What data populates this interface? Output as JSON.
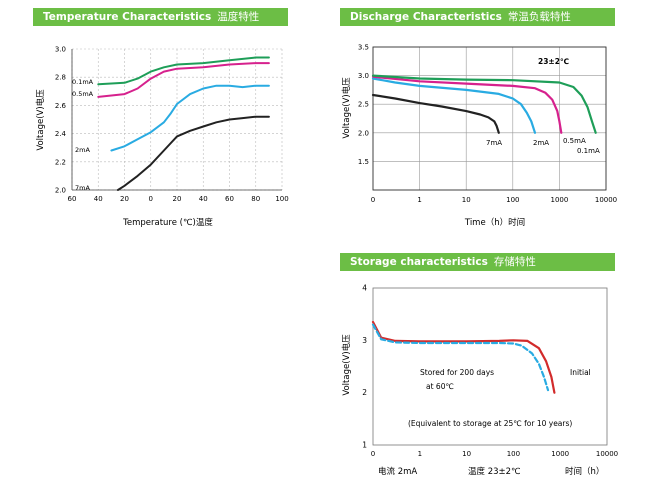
{
  "temperature": {
    "header": {
      "title_en": "Temperature Characteristics",
      "title_cn": "温度特性"
    },
    "chart_data": {
      "type": "line",
      "xlabel": "Temperature (℃)温度",
      "ylabel": "Voltage(V)电压",
      "x_ticks": [
        "60",
        "40",
        "20",
        "0",
        "20",
        "40",
        "60",
        "80",
        "100"
      ],
      "x_tick_values": [
        -60,
        -40,
        -20,
        0,
        20,
        40,
        60,
        80,
        100
      ],
      "y_ticks": [
        "3.0",
        "2.8",
        "2.6",
        "2.4",
        "2.2",
        "2.0"
      ],
      "xlim": [
        -60,
        100
      ],
      "ylim": [
        2.0,
        3.0
      ],
      "grid": true,
      "series": [
        {
          "name": "0.1mA",
          "color": "#1e9e58",
          "x": [
            -40,
            -20,
            -10,
            0,
            10,
            20,
            40,
            60,
            80,
            90
          ],
          "y": [
            2.75,
            2.76,
            2.79,
            2.84,
            2.87,
            2.89,
            2.9,
            2.92,
            2.94,
            2.94
          ]
        },
        {
          "name": "0.5mA",
          "color": "#d6218d",
          "x": [
            -40,
            -20,
            -10,
            0,
            10,
            20,
            40,
            60,
            80,
            90
          ],
          "y": [
            2.66,
            2.68,
            2.72,
            2.79,
            2.84,
            2.86,
            2.87,
            2.89,
            2.9,
            2.9
          ]
        },
        {
          "name": "2mA",
          "color": "#29abe2",
          "x": [
            -30,
            -20,
            -10,
            0,
            10,
            15,
            20,
            30,
            40,
            50,
            60,
            70,
            80,
            90
          ],
          "y": [
            2.28,
            2.31,
            2.36,
            2.41,
            2.48,
            2.54,
            2.61,
            2.68,
            2.72,
            2.74,
            2.74,
            2.73,
            2.74,
            2.74
          ]
        },
        {
          "name": "7mA",
          "color": "#222222",
          "x": [
            -25,
            -20,
            -10,
            0,
            10,
            15,
            20,
            30,
            40,
            50,
            60,
            70,
            80,
            90
          ],
          "y": [
            2.0,
            2.03,
            2.1,
            2.18,
            2.28,
            2.33,
            2.38,
            2.42,
            2.45,
            2.48,
            2.5,
            2.51,
            2.52,
            2.52
          ]
        }
      ]
    }
  },
  "discharge": {
    "header": {
      "title_en": "Discharge Characteristics",
      "title_cn": "常温负载特性"
    },
    "chart_data": {
      "type": "line",
      "xlabel": "Time（h）时间",
      "ylabel": "Voltage(V)电压",
      "annotation": "23±2℃",
      "x_scale": "log",
      "x_ticks": [
        "0",
        "1",
        "10",
        "100",
        "1000",
        "10000"
      ],
      "y_ticks": [
        "3.5",
        "3.0",
        "2.5",
        "2.0",
        "1.5"
      ],
      "ylim": [
        1.0,
        3.5
      ],
      "grid": true,
      "series": [
        {
          "name": "7mA",
          "color": "#222222",
          "x": [
            0.1,
            0.3,
            1,
            3,
            10,
            20,
            30,
            40,
            45,
            50
          ],
          "y": [
            2.66,
            2.6,
            2.52,
            2.46,
            2.38,
            2.32,
            2.27,
            2.2,
            2.12,
            2.0
          ]
        },
        {
          "name": "2mA",
          "color": "#29abe2",
          "x": [
            0.1,
            0.3,
            1,
            10,
            50,
            100,
            150,
            200,
            250,
            300
          ],
          "y": [
            2.95,
            2.88,
            2.82,
            2.75,
            2.68,
            2.6,
            2.5,
            2.35,
            2.2,
            2.0
          ]
        },
        {
          "name": "0.5mA",
          "color": "#d6218d",
          "x": [
            0.1,
            1,
            10,
            100,
            300,
            500,
            700,
            900,
            1000,
            1100
          ],
          "y": [
            2.98,
            2.9,
            2.86,
            2.82,
            2.78,
            2.7,
            2.58,
            2.38,
            2.2,
            2.0
          ]
        },
        {
          "name": "0.1mA",
          "color": "#1e9e58",
          "x": [
            0.1,
            1,
            10,
            100,
            1000,
            2000,
            3000,
            4000,
            5000,
            6000
          ],
          "y": [
            3.0,
            2.95,
            2.93,
            2.92,
            2.88,
            2.8,
            2.65,
            2.45,
            2.2,
            2.0
          ]
        }
      ]
    }
  },
  "storage": {
    "header": {
      "title_en": "Storage characteristics",
      "title_cn": "存储特性"
    },
    "chart_data": {
      "type": "line",
      "ylabel": "Voltage(V)电压",
      "x_scale": "log",
      "x_ticks": [
        "0",
        "1",
        "10",
        "100",
        "1000",
        "10000"
      ],
      "y_ticks": [
        "4",
        "3",
        "2",
        "1"
      ],
      "ylim": [
        1,
        4
      ],
      "bottom_labels": {
        "current": "电流  2mA",
        "temp": "温度  23±2℃",
        "time": "时间（h）"
      },
      "annotations": {
        "stored": "Stored for 200 days",
        "at60": "at 60℃",
        "initial": "Initial",
        "equiv": "(Equivalent to storage at 25℃ for 10 years)"
      },
      "series": [
        {
          "name": "Initial",
          "color": "#d22b2b",
          "x": [
            0.1,
            0.15,
            0.3,
            1,
            10,
            50,
            100,
            200,
            350,
            500,
            650,
            750
          ],
          "y": [
            3.35,
            3.05,
            2.99,
            2.98,
            2.98,
            2.99,
            3.0,
            2.99,
            2.85,
            2.6,
            2.3,
            2.0
          ]
        },
        {
          "name": "Stored for 200 days at 60℃",
          "color": "#29abe2",
          "x": [
            0.1,
            0.15,
            0.3,
            1,
            10,
            50,
            100,
            150,
            250,
            350,
            450,
            550
          ],
          "y": [
            3.3,
            3.02,
            2.96,
            2.95,
            2.95,
            2.95,
            2.94,
            2.9,
            2.75,
            2.55,
            2.3,
            2.05
          ]
        }
      ]
    }
  }
}
